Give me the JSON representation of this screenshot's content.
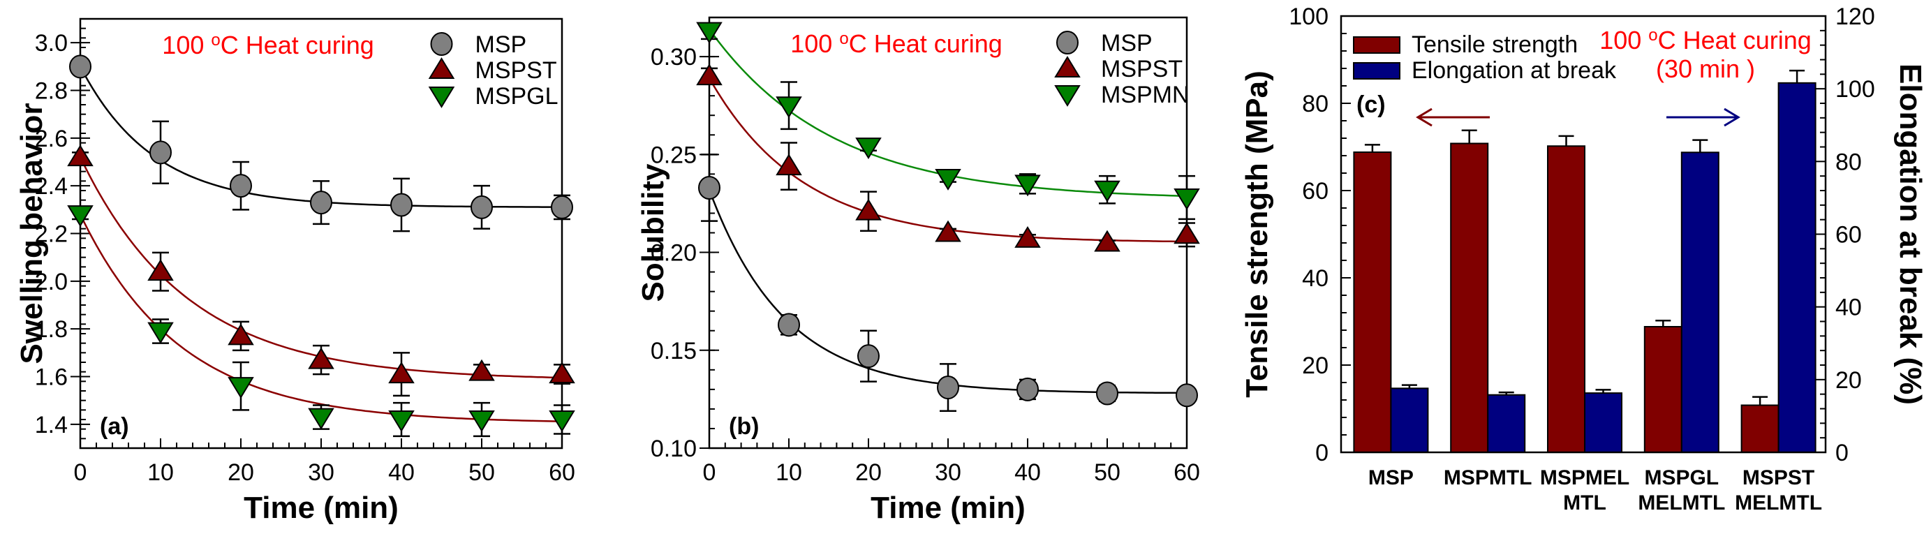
{
  "annotation": {
    "prefix": "100 ",
    "superscript": "o",
    "suffix": "C Heat curing",
    "duration": "(30 min )"
  },
  "colors": {
    "msp": "#808080",
    "mspst": "#800000",
    "green": "#008000",
    "fit_black": "#000000",
    "fit_darkred": "#8b0000",
    "fit_green": "#0a8a0a",
    "tensile_bar": "#800000",
    "elongation_bar": "#000080",
    "annotation": "#ff0000"
  },
  "chart_data": [
    {
      "id": "a",
      "type": "scatter",
      "panel_label": "(a)",
      "title": "",
      "xlabel": "Time (min)",
      "ylabel": "Swelling behavior",
      "xlim": [
        0,
        60
      ],
      "ylim": [
        1.3,
        3.1
      ],
      "xticks": [
        0,
        10,
        20,
        30,
        40,
        50,
        60
      ],
      "yticks": [
        1.4,
        1.6,
        1.8,
        2.0,
        2.2,
        2.4,
        2.6,
        2.8,
        3.0
      ],
      "ytick_decimals": 1,
      "grid": false,
      "legend_position": "top-right",
      "x": [
        0,
        10,
        20,
        30,
        40,
        50,
        60
      ],
      "series": [
        {
          "name": "MSP",
          "marker": "circle",
          "color_key": "msp",
          "fit_color_key": "fit_black",
          "values": [
            2.9,
            2.54,
            2.4,
            2.33,
            2.32,
            2.31,
            2.31
          ],
          "errors": [
            0.02,
            0.13,
            0.1,
            0.09,
            0.11,
            0.09,
            0.05
          ],
          "fit": {
            "y0": 2.9,
            "plateau": 2.31,
            "k": 0.11
          }
        },
        {
          "name": "MSPST",
          "marker": "triangle-up",
          "color_key": "mspst",
          "fit_color_key": "fit_darkred",
          "values": [
            2.52,
            2.04,
            1.77,
            1.67,
            1.61,
            1.62,
            1.61
          ],
          "errors": [
            0.02,
            0.08,
            0.06,
            0.06,
            0.09,
            0.03,
            0.04
          ],
          "fit": {
            "y0": 2.52,
            "plateau": 1.585,
            "k": 0.075
          }
        },
        {
          "name": "MSPGL",
          "marker": "triangle-down",
          "color_key": "green",
          "fit_color_key": "fit_darkred",
          "values": [
            2.28,
            1.79,
            1.56,
            1.43,
            1.42,
            1.42,
            1.42
          ],
          "errors": [
            0.02,
            0.05,
            0.1,
            0.05,
            0.07,
            0.07,
            0.06
          ],
          "fit": {
            "y0": 2.28,
            "plateau": 1.405,
            "k": 0.08
          }
        }
      ],
      "annotations": [
        "100 oC Heat curing"
      ]
    },
    {
      "id": "b",
      "type": "scatter",
      "panel_label": "(b)",
      "title": "",
      "xlabel": "Time (min)",
      "ylabel": "Solubility",
      "xlim": [
        0,
        60
      ],
      "ylim": [
        0.1,
        0.32
      ],
      "xticks": [
        0,
        10,
        20,
        30,
        40,
        50,
        60
      ],
      "yticks": [
        0.1,
        0.15,
        0.2,
        0.25,
        0.3
      ],
      "ytick_decimals": 2,
      "grid": false,
      "legend_position": "top-right",
      "x": [
        0,
        10,
        20,
        30,
        40,
        50,
        60
      ],
      "series": [
        {
          "name": "MSP",
          "marker": "circle",
          "color_key": "msp",
          "fit_color_key": "fit_black",
          "values": [
            0.233,
            0.163,
            0.147,
            0.131,
            0.13,
            0.128,
            0.127
          ],
          "errors": [
            0.017,
            0.005,
            0.013,
            0.012,
            0.005,
            0.004,
            0.002
          ],
          "fit": {
            "y0": 0.232,
            "plateau": 0.128,
            "k": 0.105
          }
        },
        {
          "name": "MSPST",
          "marker": "triangle-up",
          "color_key": "mspst",
          "fit_color_key": "fit_darkred",
          "values": [
            0.29,
            0.244,
            0.221,
            0.21,
            0.207,
            0.205,
            0.209
          ],
          "errors": [
            0.004,
            0.012,
            0.01,
            0.002,
            0.002,
            0.001,
            0.006
          ],
          "fit": {
            "y0": 0.289,
            "plateau": 0.205,
            "k": 0.085
          }
        },
        {
          "name": "MSPMN",
          "marker": "triangle-down",
          "color_key": "green",
          "fit_color_key": "fit_green",
          "values": [
            0.313,
            0.275,
            0.254,
            0.238,
            0.235,
            0.232,
            0.228
          ],
          "errors": [
            0.004,
            0.012,
            0.002,
            0.002,
            0.005,
            0.007,
            0.011
          ],
          "fit": {
            "y0": 0.314,
            "plateau": 0.227,
            "k": 0.065
          }
        }
      ],
      "annotations": [
        "100 oC Heat curing"
      ]
    },
    {
      "id": "c",
      "type": "bar",
      "panel_label": "(c)",
      "title": "",
      "xlabel": "",
      "ylabel": "Tensile strength (MPa)",
      "y2label": "Elongation at break (%)",
      "ylim": [
        0,
        100
      ],
      "y2lim": [
        0,
        120
      ],
      "yticks": [
        0,
        20,
        40,
        60,
        80,
        100
      ],
      "y2ticks": [
        0,
        20,
        40,
        60,
        80,
        100,
        120
      ],
      "grid": false,
      "legend_position": "top-left",
      "categories": [
        [
          "MSP"
        ],
        [
          "MSPMTL"
        ],
        [
          "MSPMEL",
          "MTL"
        ],
        [
          "MSPGL",
          "MELMTL"
        ],
        [
          "MSPST",
          "MELMTL"
        ]
      ],
      "series": [
        {
          "name": "Tensile strength",
          "axis": "left",
          "color_key": "tensile_bar",
          "values": [
            68.8,
            70.8,
            70.2,
            28.8,
            10.8
          ],
          "errors": [
            1.7,
            3.0,
            2.3,
            1.4,
            1.9
          ]
        },
        {
          "name": "Elongation at break",
          "axis": "right",
          "color_key": "elongation_bar",
          "values": [
            17.6,
            15.8,
            16.3,
            82.5,
            101.6
          ],
          "errors": [
            0.9,
            0.7,
            0.9,
            3.4,
            3.4
          ]
        }
      ],
      "arrows": [
        {
          "direction": "left",
          "axis": "left",
          "color_key": "tensile_bar"
        },
        {
          "direction": "right",
          "axis": "right",
          "color_key": "elongation_bar"
        }
      ],
      "annotations": [
        "100 oC Heat curing",
        "(30 min )"
      ]
    }
  ]
}
